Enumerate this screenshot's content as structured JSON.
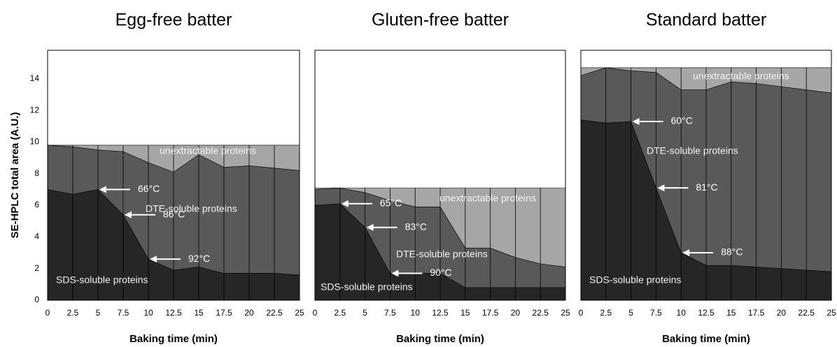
{
  "chart_data": [
    {
      "type": "area",
      "stacked": true,
      "title": "Egg-free batter",
      "xlabel": "Baking time (min)",
      "ylabel": "SE-HPLC total area (A.U.)",
      "x": [
        0,
        2.5,
        5,
        7.5,
        10,
        12.5,
        15,
        17.5,
        20,
        22.5,
        25
      ],
      "xlim": [
        0,
        25
      ],
      "xticks": [
        0,
        2.5,
        5,
        7.5,
        10,
        12.5,
        15,
        17.5,
        20,
        22.5,
        25
      ],
      "ylim": [
        0,
        15.8
      ],
      "yticks": [
        0,
        2,
        4,
        6,
        8,
        10,
        12,
        14
      ],
      "xgrid": true,
      "series": [
        {
          "name": "SDS-soluble proteins",
          "color": "#262626",
          "values": [
            7.0,
            6.7,
            7.0,
            5.4,
            2.6,
            1.9,
            2.1,
            1.7,
            1.7,
            1.7,
            1.6
          ]
        },
        {
          "name": "DTE-soluble proteins",
          "color": "#595959",
          "values": [
            2.8,
            3.0,
            2.5,
            4.0,
            6.1,
            6.2,
            7.1,
            6.7,
            6.8,
            6.65,
            6.6
          ]
        },
        {
          "name": "unextractable proteins",
          "color": "#a6a6a6",
          "values": [
            0,
            0.1,
            0.3,
            0.4,
            1.1,
            1.7,
            0.6,
            1.4,
            1.3,
            1.45,
            1.6
          ]
        }
      ],
      "annotations": [
        {
          "text": "66°C",
          "x": 5
        },
        {
          "text": "86°C",
          "x": 7.5
        },
        {
          "text": "92°C",
          "x": 10
        }
      ]
    },
    {
      "type": "area",
      "stacked": true,
      "title": "Gluten-free batter",
      "xlabel": "Baking time (min)",
      "x": [
        0,
        2.5,
        5,
        7.5,
        10,
        12.5,
        15,
        17.5,
        20,
        22.5,
        25
      ],
      "xlim": [
        0,
        25
      ],
      "xticks": [
        0,
        2.5,
        5,
        7.5,
        10,
        12.5,
        15,
        17.5,
        20,
        22.5,
        25
      ],
      "ylim": [
        0,
        15.8
      ],
      "xgrid": true,
      "series": [
        {
          "name": "SDS-soluble proteins",
          "color": "#262626",
          "values": [
            6.0,
            6.1,
            4.6,
            1.7,
            1.7,
            1.7,
            0.8,
            0.8,
            0.8,
            0.8,
            0.8
          ]
        },
        {
          "name": "DTE-soluble proteins",
          "color": "#595959",
          "values": [
            1.0,
            1.0,
            2.2,
            4.6,
            4.2,
            4.2,
            2.5,
            2.5,
            1.9,
            1.5,
            1.3
          ]
        },
        {
          "name": "unextractable proteins",
          "color": "#a6a6a6",
          "values": [
            0.1,
            0,
            0.3,
            0.8,
            1.2,
            1.2,
            3.8,
            3.8,
            4.4,
            4.8,
            5.0
          ]
        }
      ],
      "annotations": [
        {
          "text": "65°C",
          "x": 2.5
        },
        {
          "text": "83°C",
          "x": 5
        },
        {
          "text": "90°C",
          "x": 7.5
        }
      ]
    },
    {
      "type": "area",
      "stacked": true,
      "title": "Standard batter",
      "xlabel": "Baking time (min)",
      "x": [
        0,
        2.5,
        5,
        7.5,
        10,
        12.5,
        15,
        17.5,
        20,
        22.5,
        25
      ],
      "xlim": [
        0,
        25
      ],
      "xticks": [
        0,
        2.5,
        5,
        7.5,
        10,
        12.5,
        15,
        17.5,
        20,
        22.5,
        25
      ],
      "ylim": [
        0,
        15.8
      ],
      "xgrid": true,
      "series": [
        {
          "name": "SDS-soluble proteins",
          "color": "#262626",
          "values": [
            11.4,
            11.2,
            11.3,
            7.1,
            3.0,
            2.2,
            2.2,
            2.1,
            2.0,
            1.9,
            1.8
          ]
        },
        {
          "name": "DTE-soluble proteins",
          "color": "#595959",
          "values": [
            2.8,
            3.5,
            3.2,
            7.3,
            10.3,
            11.1,
            11.6,
            11.6,
            11.5,
            11.4,
            11.3
          ]
        },
        {
          "name": "unextractable proteins",
          "color": "#a6a6a6",
          "values": [
            0.5,
            0,
            0.2,
            0.3,
            1.4,
            1.4,
            0.9,
            1.0,
            1.2,
            1.4,
            1.6
          ]
        }
      ],
      "annotations": [
        {
          "text": "60°C",
          "x": 5
        },
        {
          "text": "81°C",
          "x": 7.5
        },
        {
          "text": "88°C",
          "x": 10
        }
      ]
    }
  ]
}
